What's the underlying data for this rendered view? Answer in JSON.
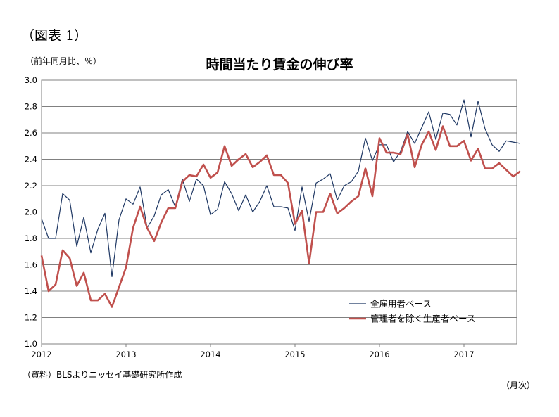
{
  "figure_label": "（図表 1）",
  "unit_label": "（前年同月比、％）",
  "source_note": "（資料）BLSよりニッセイ基礎研究所作成",
  "month_label": "（月次）",
  "chart_data": {
    "type": "line",
    "title": "時間当たり賃金の伸び率",
    "xlabel": "",
    "ylabel": "",
    "ylim": [
      1.0,
      3.0
    ],
    "y_ticks": [
      "3.0",
      "2.8",
      "2.6",
      "2.4",
      "2.2",
      "2.0",
      "1.8",
      "1.6",
      "1.4",
      "1.2",
      "1.0"
    ],
    "x_ticks": [
      "2012",
      "2013",
      "2014",
      "2015",
      "2016",
      "2017"
    ],
    "x_start": "2012-01",
    "grid": true,
    "legend": "lower-right",
    "series": [
      {
        "name": "全雇用者ベース",
        "color": "#1f3864",
        "values": [
          1.95,
          1.8,
          1.8,
          2.14,
          2.09,
          1.74,
          1.96,
          1.69,
          1.87,
          1.99,
          1.51,
          1.94,
          2.1,
          2.06,
          2.19,
          1.88,
          1.97,
          2.13,
          2.17,
          2.04,
          2.25,
          2.08,
          2.25,
          2.2,
          1.98,
          2.02,
          2.23,
          2.14,
          2.01,
          2.13,
          2.0,
          2.08,
          2.2,
          2.04,
          2.04,
          2.03,
          1.86,
          2.19,
          1.93,
          2.22,
          2.25,
          2.29,
          2.09,
          2.2,
          2.23,
          2.31,
          2.56,
          2.39,
          2.51,
          2.51,
          2.38,
          2.46,
          2.61,
          2.52,
          2.64,
          2.76,
          2.55,
          2.75,
          2.74,
          2.66,
          2.85,
          2.57,
          2.84,
          2.63,
          2.51,
          2.46,
          2.54,
          2.53,
          2.52
        ]
      },
      {
        "name": "管理者を除く生産者ベース",
        "color": "#c0504d",
        "values": [
          1.67,
          1.4,
          1.45,
          1.71,
          1.65,
          1.44,
          1.54,
          1.33,
          1.33,
          1.38,
          1.28,
          1.43,
          1.58,
          1.88,
          2.04,
          1.88,
          1.78,
          1.92,
          2.03,
          2.03,
          2.23,
          2.28,
          2.27,
          2.36,
          2.26,
          2.3,
          2.5,
          2.35,
          2.4,
          2.44,
          2.34,
          2.38,
          2.43,
          2.28,
          2.28,
          2.22,
          1.91,
          2.01,
          1.61,
          2.0,
          2.0,
          2.14,
          1.99,
          2.03,
          2.08,
          2.12,
          2.33,
          2.12,
          2.56,
          2.45,
          2.45,
          2.44,
          2.59,
          2.34,
          2.51,
          2.61,
          2.47,
          2.65,
          2.5,
          2.5,
          2.54,
          2.39,
          2.48,
          2.33,
          2.33,
          2.37,
          2.32,
          2.27,
          2.31
        ]
      }
    ]
  }
}
